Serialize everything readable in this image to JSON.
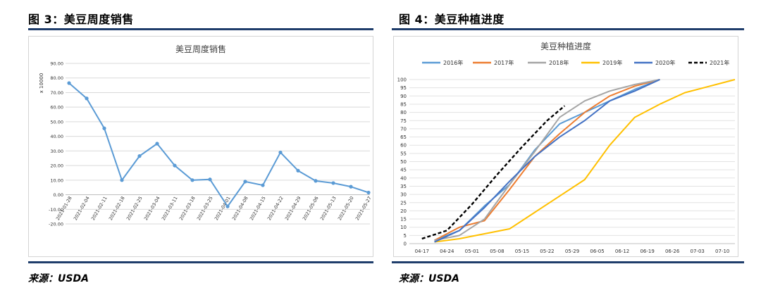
{
  "left_header": "图 3：美豆周度销售",
  "right_header": "图 4：美豆种植进度",
  "source_left": "来源：USDA",
  "source_right": "来源：USDA",
  "colors": {
    "rule": "#1f3d6b",
    "line_left": "#5b9bd5"
  },
  "chart_data": [
    {
      "type": "line",
      "title": "美豆周度销售",
      "ylabel": "x 10000",
      "ylim": [
        -20,
        90
      ],
      "yticks": [
        "-20.00",
        "-10.00",
        "0.00",
        "10.00",
        "20.00",
        "30.00",
        "40.00",
        "50.00",
        "60.00",
        "70.00",
        "80.00",
        "90.00"
      ],
      "categories": [
        "2021-01-28",
        "2021-02-04",
        "2021-02-11",
        "2021-02-18",
        "2021-02-25",
        "2021-03-04",
        "2021-03-11",
        "2021-03-18",
        "2021-03-25",
        "2021-04-01",
        "2021-04-08",
        "2021-04-15",
        "2021-04-22",
        "2021-04-29",
        "2021-05-06",
        "2021-05-13",
        "2021-05-20",
        "2021-05-27"
      ],
      "values": [
        76.5,
        66,
        45.5,
        10,
        26.5,
        35,
        20,
        10,
        10.5,
        -8,
        9,
        6.5,
        29,
        16.5,
        9.5,
        8,
        5.5,
        1.5
      ],
      "grid": true
    },
    {
      "type": "line",
      "title": "美豆种植进度",
      "ylim": [
        0,
        100
      ],
      "yticks": [
        "0",
        "5",
        "10",
        "15",
        "20",
        "25",
        "30",
        "35",
        "40",
        "45",
        "50",
        "55",
        "60",
        "65",
        "70",
        "75",
        "80",
        "85",
        "90",
        "95",
        "100"
      ],
      "categories": [
        "04-17",
        "04-24",
        "05-01",
        "05-08",
        "05-15",
        "05-22",
        "05-29",
        "06-05",
        "06-12",
        "06-19",
        "06-26",
        "07-03",
        "07-10"
      ],
      "legend_position": "top",
      "series": [
        {
          "name": "2016年",
          "color": "#5b9bd5",
          "dash": "",
          "x": [
            1,
            2,
            3,
            4,
            5,
            6,
            7,
            8,
            9,
            10
          ],
          "values": [
            2,
            8,
            23,
            36,
            57,
            73,
            80,
            87,
            94,
            100
          ]
        },
        {
          "name": "2017年",
          "color": "#ed7d31",
          "dash": "",
          "x": [
            1,
            2,
            3,
            4,
            5,
            6,
            7,
            8,
            9,
            10
          ],
          "values": [
            2,
            10,
            14,
            33,
            53,
            67,
            80,
            90,
            96,
            100
          ]
        },
        {
          "name": "2018年",
          "color": "#a5a5a5",
          "dash": "",
          "x": [
            1,
            2,
            3,
            4,
            5,
            6,
            7,
            8,
            9,
            10
          ],
          "values": [
            2,
            5,
            15,
            36,
            56,
            77,
            87,
            93,
            97,
            100
          ]
        },
        {
          "name": "2019年",
          "color": "#ffc000",
          "dash": "",
          "x": [
            1,
            2,
            3,
            4,
            5,
            6,
            7,
            8,
            9,
            10,
            11,
            12,
            13
          ],
          "values": [
            1,
            3,
            6,
            9,
            19,
            29,
            39,
            60,
            77,
            85,
            92,
            96,
            100
          ]
        },
        {
          "name": "2020年",
          "color": "#4472c4",
          "dash": "",
          "x": [
            1,
            2,
            3,
            4,
            5,
            6,
            7,
            8,
            9,
            10
          ],
          "values": [
            1,
            8,
            22,
            38,
            53,
            65,
            75,
            87,
            93,
            100
          ]
        },
        {
          "name": "2021年",
          "color": "#000000",
          "dash": "5,3",
          "x": [
            0.5,
            1.5,
            2.5,
            3.5,
            4.5,
            5.5,
            6.2
          ],
          "values": [
            3,
            8,
            24,
            42,
            59,
            75,
            84
          ]
        }
      ],
      "grid": true
    }
  ]
}
